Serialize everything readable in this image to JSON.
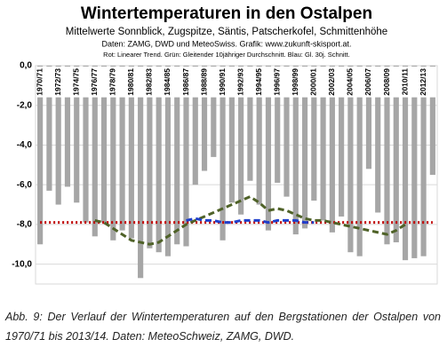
{
  "chart_data": {
    "type": "bar",
    "title": "Wintertemperaturen in den Ostalpen",
    "subtitle": "Mittelwerte Sonnblick, Zugspitze,  Säntis, Patscherkofel, Schmittenhöhe",
    "source": "Daten: ZAMG, DWD und MeteoSwiss. Grafik: www.zukunft-skisport.at.",
    "note": "Rot: Linearer Trend. Grün: Gleitender 10jähriger Durchschnitt. Blau: Gl. 30j. Schnitt.",
    "categories": [
      "1970/71",
      null,
      "1972/73",
      null,
      "1974/75",
      null,
      "1976/77",
      null,
      "1978/79",
      null,
      "1980/81",
      null,
      "1982/83",
      null,
      "1984/85",
      null,
      "1986/87",
      null,
      "1988/89",
      null,
      "1990/91",
      null,
      "1992/93",
      null,
      "1994/95",
      null,
      "1996/97",
      null,
      "1998/99",
      null,
      "2000/01",
      null,
      "2002/03",
      null,
      "2004/05",
      null,
      "2006/07",
      null,
      "2008/09",
      null,
      "2010/11",
      null,
      "2012/13",
      null
    ],
    "values": [
      -9.0,
      -6.3,
      -7.0,
      -6.1,
      -6.9,
      -7.9,
      -8.6,
      -7.9,
      -8.8,
      -8.3,
      -8.7,
      -10.7,
      -9.2,
      -9.4,
      -9.6,
      -9.0,
      -9.1,
      -6.0,
      -5.3,
      -4.6,
      -8.8,
      -6.9,
      -7.5,
      -5.8,
      -7.0,
      -8.3,
      -5.9,
      -6.6,
      -8.5,
      -8.2,
      -6.8,
      -7.8,
      -8.4,
      -7.6,
      -9.4,
      -9.6,
      -5.2,
      -7.4,
      -9.0,
      -8.9,
      -9.8,
      -9.7,
      -9.6,
      -5.5
    ],
    "color": "#a6a6a6",
    "lines": [
      {
        "color": "#c00000",
        "dash": "dotted",
        "values": [
          -7.9,
          -7.9,
          -7.9,
          -7.9,
          -7.9,
          -7.9,
          -7.9,
          -7.9,
          -7.9,
          -7.9,
          -7.9,
          -7.9,
          -7.9,
          -7.9,
          -7.9,
          -7.9,
          -7.9,
          -7.9,
          -7.9,
          -7.9,
          -7.9,
          -7.9,
          -7.9,
          -7.9,
          -7.9,
          -7.9,
          -7.9,
          -7.9,
          -7.9,
          -7.9,
          -7.9,
          -7.9,
          -7.9,
          -7.9,
          -7.9,
          -7.9,
          -7.9,
          -7.9,
          -7.9,
          -7.9,
          -7.9,
          -7.9,
          -7.9,
          -7.9
        ]
      },
      {
        "color": "#4f6228",
        "dash": "dashed",
        "values": [
          null,
          null,
          null,
          null,
          null,
          null,
          -7.8,
          -7.9,
          -8.2,
          -8.5,
          -8.8,
          -8.9,
          -9.0,
          -8.9,
          -8.6,
          -8.3,
          -8.0,
          -7.8,
          -7.6,
          -7.4,
          -7.2,
          -7.0,
          -6.8,
          -6.6,
          -6.9,
          -7.3,
          -7.2,
          -7.3,
          -7.5,
          -7.7,
          -7.8,
          -7.8,
          -7.9,
          -8.0,
          -8.1,
          -8.2,
          -8.3,
          -8.4,
          -8.5,
          -8.3,
          -8.0,
          null,
          null,
          null
        ]
      },
      {
        "color": "#1f3fcc",
        "dash": "dashed",
        "values": [
          null,
          null,
          null,
          null,
          null,
          null,
          null,
          null,
          null,
          null,
          null,
          null,
          null,
          null,
          null,
          null,
          -7.8,
          -7.7,
          -7.8,
          -7.8,
          -7.9,
          -7.9,
          -7.8,
          -7.8,
          -7.8,
          -7.9,
          -7.8,
          -7.8,
          -7.8,
          -7.9,
          -7.9,
          null,
          null,
          null,
          null,
          null,
          null,
          null,
          null,
          null,
          null,
          null,
          null,
          null
        ]
      }
    ],
    "ylim": [
      0,
      -11
    ],
    "yticks": [
      {
        "value": 0,
        "label": "0,0"
      },
      {
        "value": -2,
        "label": "-2,0"
      },
      {
        "value": -4,
        "label": "-4,0"
      },
      {
        "value": -6,
        "label": "-6,0"
      },
      {
        "value": -8,
        "label": "-8,0"
      },
      {
        "value": -10,
        "label": "-10,0"
      }
    ],
    "grid": true
  },
  "caption": "Abb. 9: Der Verlauf der Wintertemperaturen auf den Bergstationen der Ostalpen von 1970/71 bis 2013/14. Daten: MeteoSchweiz, ZAMG, DWD."
}
